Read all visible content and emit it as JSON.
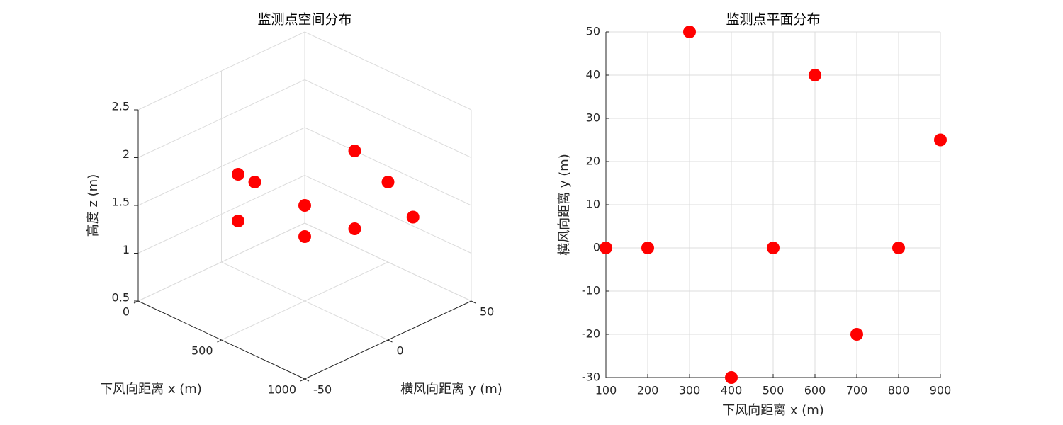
{
  "chart_data": [
    {
      "type": "scatter3d",
      "title": "监测点空间分布",
      "x_label": "下风向距离 x (m)",
      "y_label": "横风向距离 y (m)",
      "z_label": "高度 z (m)",
      "x": [
        100,
        200,
        300,
        400,
        500,
        600,
        700,
        800,
        900
      ],
      "y": [
        0,
        0,
        50,
        -30,
        0,
        40,
        -20,
        0,
        25
      ],
      "z": [
        1.5,
        1.5,
        1.5,
        1.5,
        1.5,
        1.5,
        1.5,
        1.5,
        1.5
      ],
      "color": "#ff0000",
      "xlim": [
        0,
        1000
      ],
      "xticks": [
        0,
        500,
        1000
      ],
      "ylim": [
        -50,
        50
      ],
      "yticks": [
        -50,
        0,
        50
      ],
      "zlim": [
        0.5,
        2.5
      ],
      "zticks": [
        0.5,
        1,
        1.5,
        2,
        2.5
      ],
      "grid": true
    },
    {
      "type": "scatter",
      "title": "监测点平面分布",
      "x_label": "下风向距离 x (m)",
      "y_label": "横风向距离 y (m)",
      "x": [
        100,
        200,
        300,
        400,
        500,
        600,
        700,
        800,
        900
      ],
      "values": [
        0,
        0,
        50,
        -30,
        0,
        40,
        -20,
        0,
        25
      ],
      "color": "#ff0000",
      "xlim": [
        100,
        900
      ],
      "xticks": [
        100,
        200,
        300,
        400,
        500,
        600,
        700,
        800,
        900
      ],
      "ylim": [
        -30,
        50
      ],
      "yticks": [
        -30,
        -20,
        -10,
        0,
        10,
        20,
        30,
        40,
        50
      ],
      "grid": true
    }
  ]
}
